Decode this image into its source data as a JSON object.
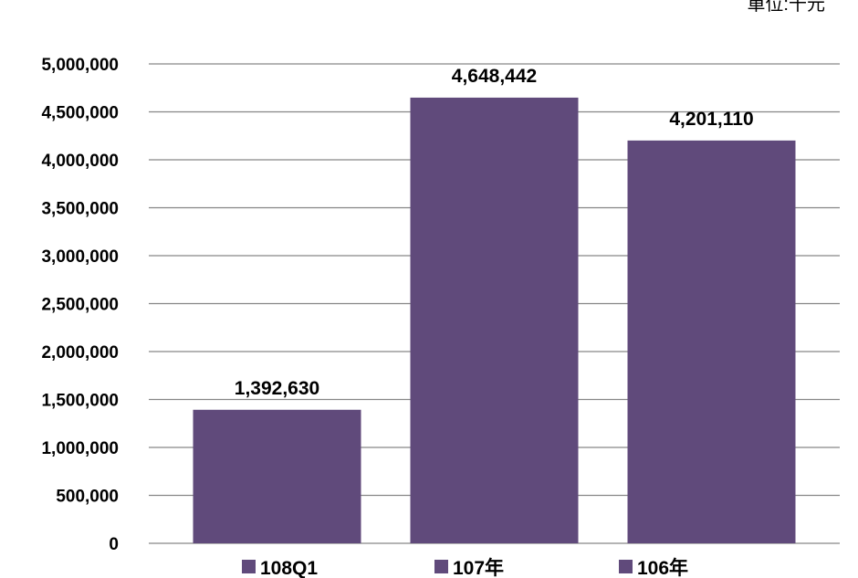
{
  "unit_note": "單位:千元",
  "chart_data": {
    "type": "bar",
    "categories": [
      "108Q1",
      "107年",
      "106年"
    ],
    "values": [
      1392630,
      4648442,
      4201110
    ],
    "data_labels": [
      "1,392,630",
      "4,648,442",
      "4,201,110"
    ],
    "ylim": [
      0,
      5000000
    ],
    "yticks": [
      0,
      500000,
      1000000,
      1500000,
      2000000,
      2500000,
      3000000,
      3500000,
      4000000,
      4500000,
      5000000
    ],
    "ytick_labels": [
      "0",
      "500,000",
      "1,000,000",
      "1,500,000",
      "2,000,000",
      "2,500,000",
      "3,000,000",
      "3,500,000",
      "4,000,000",
      "4,500,000",
      "5,000,000"
    ],
    "legend": [
      "108Q1",
      "107年",
      "106年"
    ],
    "legend_position": "bottom",
    "grid": true,
    "bar_color": "#604a7b",
    "grid_color": "#868686"
  }
}
